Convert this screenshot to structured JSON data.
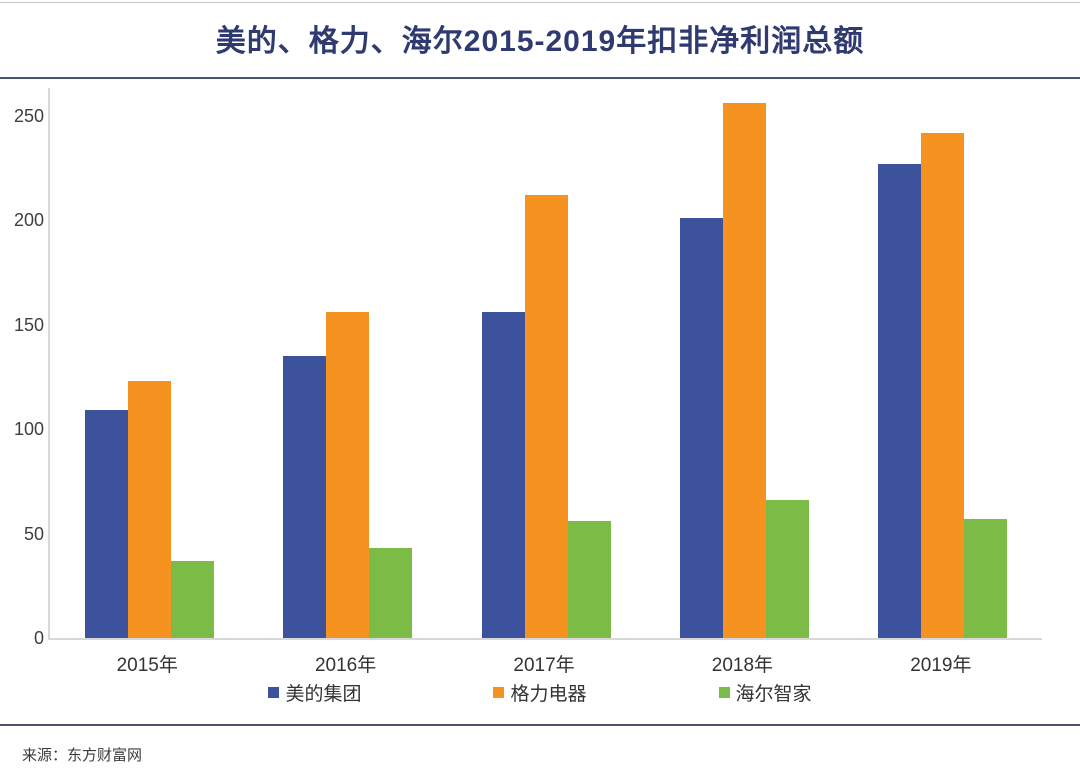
{
  "page": {
    "title": "美的、格力、海尔2015-2019年扣非净利润总额",
    "source": "来源：东方财富网"
  },
  "colors": {
    "title": "#2e3a70",
    "divider": "#4a5470",
    "axis_line": "#d8d8d8",
    "tick_text": "#3f3f3f",
    "label_text": "#333333",
    "source_text": "#3b3b3b",
    "background": "#ffffff"
  },
  "chart_data": {
    "type": "bar",
    "title": "美的、格力、海尔2015-2019年扣非净利润总额",
    "categories": [
      "2015年",
      "2016年",
      "2017年",
      "2018年",
      "2019年"
    ],
    "series": [
      {
        "name": "美的集团",
        "color": "#3d529c",
        "values": [
          109,
          135,
          156,
          201,
          227
        ]
      },
      {
        "name": "格力电器",
        "color": "#f6921f",
        "values": [
          123,
          156,
          212,
          256,
          242
        ]
      },
      {
        "name": "海尔智家",
        "color": "#7cbb45",
        "values": [
          37,
          43,
          56,
          66,
          57
        ]
      }
    ],
    "xlabel": "",
    "ylabel": "",
    "ylim": [
      0,
      250
    ],
    "yticks": [
      0,
      50,
      100,
      150,
      200,
      250
    ],
    "grid": false,
    "legend_position": "bottom",
    "source_note": "来源：东方财富网"
  }
}
